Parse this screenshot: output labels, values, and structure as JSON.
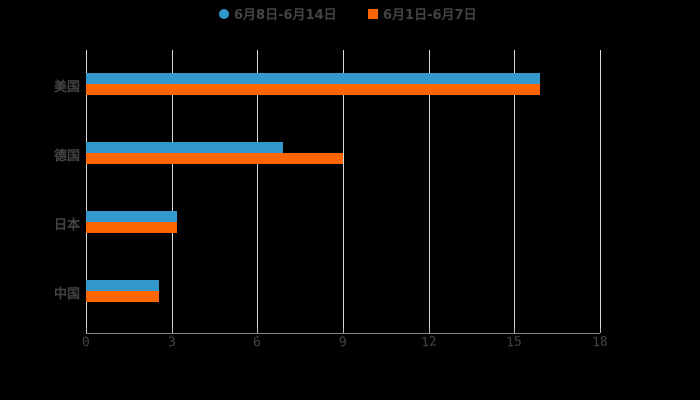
{
  "chart_data": {
    "type": "bar",
    "orientation": "horizontal",
    "title": "",
    "xlabel": "",
    "ylabel": "",
    "categories": [
      "美国",
      "德国",
      "日本",
      "中国"
    ],
    "series": [
      {
        "name": "6月8日-6月14日",
        "color": "#3399cc",
        "values": [
          15.9,
          6.9,
          3.2,
          2.55
        ]
      },
      {
        "name": "6月1日-6月7日",
        "color": "#ff6600",
        "values": [
          15.9,
          9.0,
          3.2,
          2.55
        ]
      }
    ],
    "xlim": [
      0,
      18
    ],
    "xticks": [
      "0",
      "3",
      "6",
      "9",
      "12",
      "15",
      "18"
    ],
    "grid": "vertical",
    "legend_position": "top"
  },
  "legend": [
    {
      "label": "6月8日-6月14日",
      "color": "#3399cc",
      "shape": "circle"
    },
    {
      "label": "6月1日-6月7日",
      "color": "#ff6600",
      "shape": "square"
    }
  ]
}
